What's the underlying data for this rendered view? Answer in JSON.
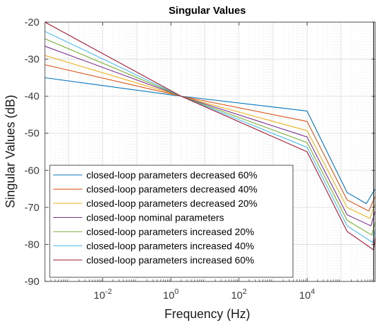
{
  "chart_data": {
    "type": "line",
    "title": "Singular Values",
    "xlabel": "Frequency (Hz)",
    "ylabel": "Singular Values (dB)",
    "x_scale": "log",
    "xlim": [
      0.0002,
      1000000
    ],
    "ylim": [
      -90,
      -20
    ],
    "x_ticks": [
      {
        "value": 0.01,
        "base": "10",
        "exp": "-2"
      },
      {
        "value": 1,
        "base": "10",
        "exp": "0"
      },
      {
        "value": 100,
        "base": "10",
        "exp": "2"
      },
      {
        "value": 10000,
        "base": "10",
        "exp": "4"
      }
    ],
    "y_ticks": [
      -20,
      -30,
      -40,
      -50,
      -60,
      -70,
      -80,
      -90
    ],
    "y_tick_labels": [
      "-20",
      "-30",
      "-40",
      "-50",
      "-60",
      "-70",
      "-80",
      "-90"
    ],
    "grid": true,
    "legend_position": "bottom-left",
    "vertical_line_x": 900000,
    "series": [
      {
        "name": "closed-loop parameters decreased 60%",
        "color": "#0072BD",
        "points": [
          [
            0.0002,
            -35
          ],
          [
            2,
            -40
          ],
          [
            10000,
            -44
          ],
          [
            150000,
            -66
          ],
          [
            550000,
            -69
          ],
          [
            1000000,
            -65
          ]
        ]
      },
      {
        "name": "closed-loop parameters decreased 40%",
        "color": "#D95319",
        "points": [
          [
            0.0002,
            -31.5
          ],
          [
            2,
            -40
          ],
          [
            10000,
            -46.8
          ],
          [
            150000,
            -68
          ],
          [
            650000,
            -71
          ],
          [
            1000000,
            -67
          ]
        ]
      },
      {
        "name": "closed-loop parameters decreased 20%",
        "color": "#EDB120",
        "points": [
          [
            0.0002,
            -29
          ],
          [
            2,
            -40
          ],
          [
            10000,
            -49.3
          ],
          [
            150000,
            -70
          ],
          [
            700000,
            -73
          ],
          [
            1000000,
            -69
          ]
        ]
      },
      {
        "name": "closed-loop nominal parameters",
        "color": "#7E2F8E",
        "points": [
          [
            0.0002,
            -26.5
          ],
          [
            2,
            -40
          ],
          [
            10000,
            -51
          ],
          [
            150000,
            -72
          ],
          [
            750000,
            -75
          ],
          [
            1000000,
            -71
          ]
        ]
      },
      {
        "name": "closed-loop parameters increased 20%",
        "color": "#77AC30",
        "points": [
          [
            0.0002,
            -24.5
          ],
          [
            2,
            -40
          ],
          [
            10000,
            -52.5
          ],
          [
            150000,
            -73.5
          ],
          [
            800000,
            -77.5
          ],
          [
            1000000,
            -74
          ]
        ]
      },
      {
        "name": "closed-loop parameters increased 40%",
        "color": "#4DBEEE",
        "points": [
          [
            0.0002,
            -22.5
          ],
          [
            2,
            -40
          ],
          [
            10000,
            -53.8
          ],
          [
            150000,
            -75
          ],
          [
            850000,
            -79.5
          ],
          [
            1000000,
            -76
          ]
        ]
      },
      {
        "name": "closed-loop parameters increased 60%",
        "color": "#A2142F",
        "points": [
          [
            0.0002,
            -20
          ],
          [
            2,
            -40
          ],
          [
            10000,
            -55
          ],
          [
            150000,
            -76.5
          ],
          [
            900000,
            -81.5
          ],
          [
            1000000,
            -78
          ]
        ]
      }
    ]
  }
}
